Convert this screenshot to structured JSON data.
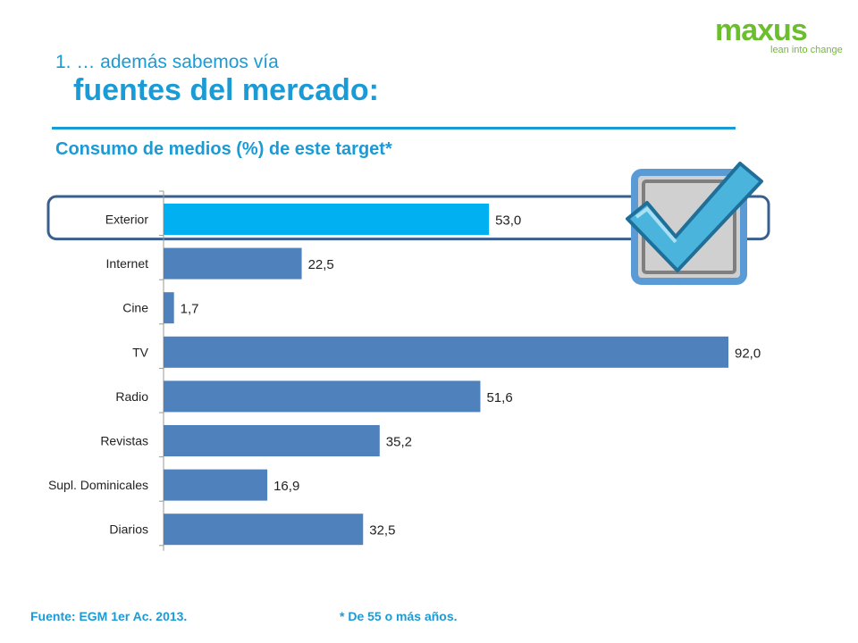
{
  "brand": {
    "name": "maxus",
    "tagline": "lean into change"
  },
  "header": {
    "title_line1": "1. … además sabemos vía",
    "title_line2": "fuentes del mercado:",
    "subtitle": "Consumo de medios (%) de este target*"
  },
  "footer": {
    "source": "Fuente: EGM 1er Ac. 2013.",
    "note": "* De 55 o más años."
  },
  "colors": {
    "accent": "#1a9bd6",
    "highlight_bar": "#00b0f0",
    "bar": "#4f81bd",
    "brand": "#6cbf2c",
    "highlight_frame": "#3a5f8f"
  },
  "icons": [
    "checkmark-icon"
  ],
  "chart_data": {
    "type": "bar",
    "orientation": "horizontal",
    "categories": [
      "Exterior",
      "Internet",
      "Cine",
      "TV",
      "Radio",
      "Revistas",
      "Supl. Dominicales",
      "Diarios"
    ],
    "values": [
      53.0,
      22.5,
      1.7,
      92.0,
      51.6,
      35.2,
      16.9,
      32.5
    ],
    "value_labels": [
      "53,0",
      "22,5",
      "1,7",
      "92,0",
      "51,6",
      "35,2",
      "16,9",
      "32,5"
    ],
    "highlighted_category": "Exterior",
    "xlim": [
      0,
      100
    ],
    "grid": false,
    "legend": "none"
  }
}
